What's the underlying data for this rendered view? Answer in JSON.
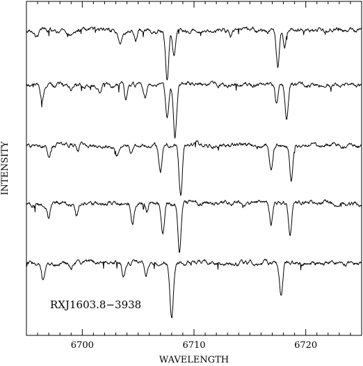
{
  "chart_data": {
    "type": "line",
    "title": "",
    "xlabel": "WAVELENGTH",
    "ylabel": "INTENSITY",
    "xlim": [
      6695,
      6725
    ],
    "x_ticks": [
      6700,
      6710,
      6720
    ],
    "x_tick_labels": [
      "6700",
      "6710",
      "6720"
    ],
    "annotation": "RXJ1603.8−3938",
    "grid": false,
    "legend": "none",
    "y_scale": "stacked spectra, arbitrary offsets (no y tick labels)",
    "continuum_levels": [
      44,
      122,
      209,
      292,
      378
    ],
    "series": [
      {
        "lines": [
          {
            "center": 6695.9,
            "depth": 10,
            "width": 0.15
          },
          {
            "center": 6698.9,
            "depth": 5,
            "width": 0.12
          },
          {
            "center": 6703.4,
            "depth": 20,
            "width": 0.13
          },
          {
            "center": 6704.8,
            "depth": 13,
            "width": 0.13
          },
          {
            "center": 6707.6,
            "depth": 72,
            "width": 0.14
          },
          {
            "center": 6708.2,
            "depth": 36,
            "width": 0.13
          },
          {
            "center": 6713.3,
            "depth": 8,
            "width": 0.12
          },
          {
            "center": 6717.5,
            "depth": 52,
            "width": 0.14
          },
          {
            "center": 6718.1,
            "depth": 26,
            "width": 0.13
          }
        ]
      },
      {
        "lines": [
          {
            "center": 6696.4,
            "depth": 22,
            "width": 0.14
          },
          {
            "center": 6699.0,
            "depth": 8,
            "width": 0.12
          },
          {
            "center": 6701.6,
            "depth": 10,
            "width": 0.12
          },
          {
            "center": 6703.9,
            "depth": 25,
            "width": 0.13
          },
          {
            "center": 6705.6,
            "depth": 18,
            "width": 0.12
          },
          {
            "center": 6707.6,
            "depth": 45,
            "width": 0.14
          },
          {
            "center": 6708.3,
            "depth": 78,
            "width": 0.14
          },
          {
            "center": 6717.4,
            "depth": 28,
            "width": 0.13
          },
          {
            "center": 6718.3,
            "depth": 52,
            "width": 0.14
          }
        ]
      },
      {
        "lines": [
          {
            "center": 6697.0,
            "depth": 16,
            "width": 0.13
          },
          {
            "center": 6699.6,
            "depth": 12,
            "width": 0.12
          },
          {
            "center": 6703.1,
            "depth": 14,
            "width": 0.12
          },
          {
            "center": 6704.4,
            "depth": 12,
            "width": 0.12
          },
          {
            "center": 6707.0,
            "depth": 40,
            "width": 0.14
          },
          {
            "center": 6708.8,
            "depth": 72,
            "width": 0.14
          },
          {
            "center": 6716.9,
            "depth": 34,
            "width": 0.13
          },
          {
            "center": 6718.7,
            "depth": 50,
            "width": 0.14
          }
        ]
      },
      {
        "lines": [
          {
            "center": 6697.0,
            "depth": 22,
            "width": 0.13
          },
          {
            "center": 6699.5,
            "depth": 16,
            "width": 0.12
          },
          {
            "center": 6704.5,
            "depth": 30,
            "width": 0.13
          },
          {
            "center": 6705.8,
            "depth": 14,
            "width": 0.12
          },
          {
            "center": 6707.2,
            "depth": 45,
            "width": 0.14
          },
          {
            "center": 6708.7,
            "depth": 72,
            "width": 0.14
          },
          {
            "center": 6716.9,
            "depth": 32,
            "width": 0.13
          },
          {
            "center": 6718.6,
            "depth": 50,
            "width": 0.14
          }
        ]
      },
      {
        "lines": [
          {
            "center": 6696.5,
            "depth": 22,
            "width": 0.14
          },
          {
            "center": 6699.0,
            "depth": 10,
            "width": 0.12
          },
          {
            "center": 6703.7,
            "depth": 20,
            "width": 0.13
          },
          {
            "center": 6705.7,
            "depth": 14,
            "width": 0.12
          },
          {
            "center": 6708.0,
            "depth": 78,
            "width": 0.15
          },
          {
            "center": 6717.8,
            "depth": 50,
            "width": 0.14
          }
        ]
      }
    ]
  }
}
